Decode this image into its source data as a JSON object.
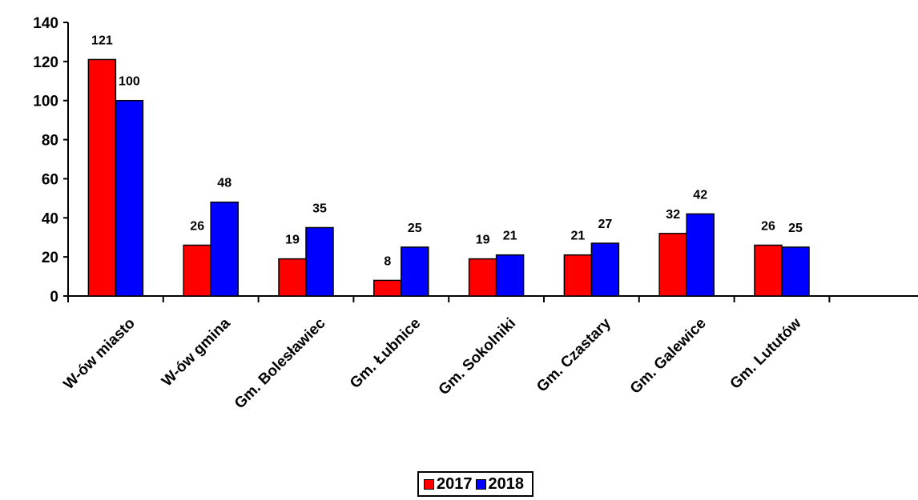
{
  "chart_data": {
    "type": "bar",
    "categories": [
      "W-ów miasto",
      "W-ów gmina",
      "Gm. Bolesławiec",
      "Gm. Łubnice",
      "Gm. Sokolniki",
      "Gm. Czastary",
      "Gm. Galewice",
      "Gm. Lututów"
    ],
    "series": [
      {
        "name": "2017",
        "color": "#ff0000",
        "values": [
          121,
          26,
          19,
          8,
          19,
          21,
          32,
          26
        ]
      },
      {
        "name": "2018",
        "color": "#0000ff",
        "values": [
          100,
          48,
          35,
          25,
          21,
          27,
          42,
          25
        ]
      }
    ],
    "yticks": [
      "0",
      "20",
      "40",
      "60",
      "80",
      "100",
      "120",
      "140"
    ],
    "ylim": [
      0,
      140
    ],
    "grid": false,
    "legend_position": "bottom-center",
    "title": "",
    "xlabel": "",
    "ylabel": ""
  }
}
